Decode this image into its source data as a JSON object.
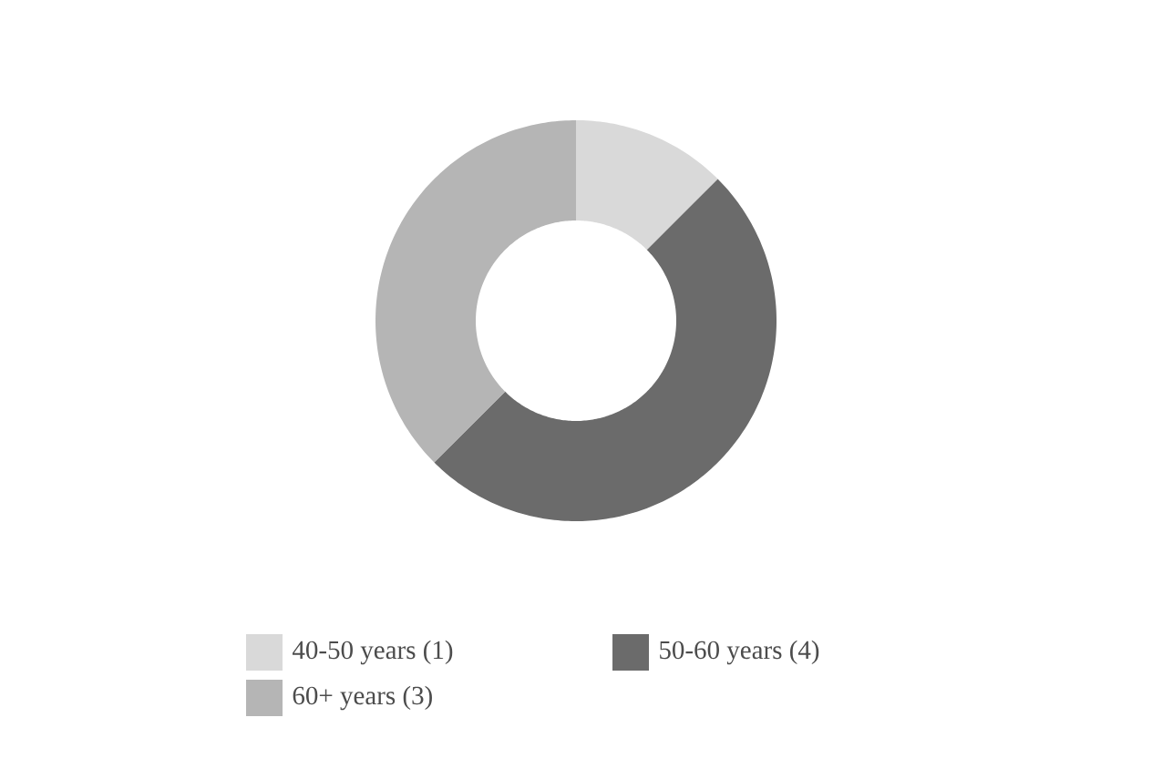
{
  "chart_data": {
    "type": "donut",
    "categories": [
      "40-50 years (1)",
      "50-60 years (4)",
      "60+ years (3)"
    ],
    "values": [
      1,
      4,
      3
    ],
    "colors": [
      "#d9d9d9",
      "#6b6b6b",
      "#b5b5b5"
    ],
    "legend": "bottom"
  }
}
